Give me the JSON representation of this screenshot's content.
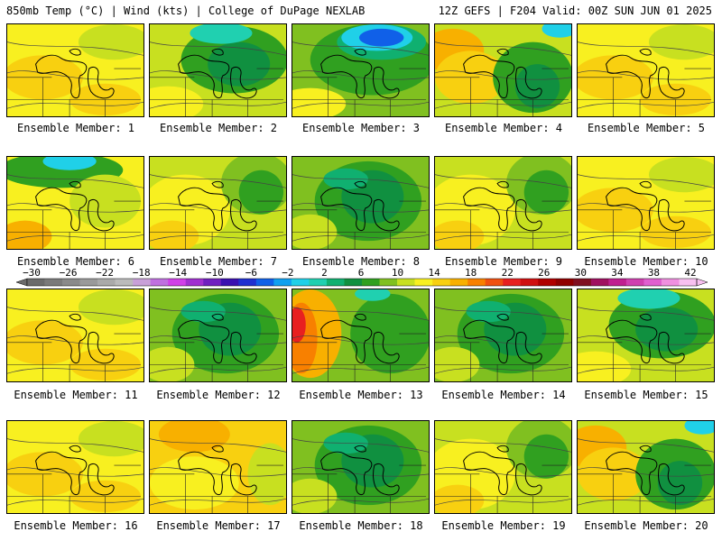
{
  "header": {
    "left": "850mb Temp (°C) | Wind (kts) | College of DuPage NEXLAB",
    "right": "12Z GEFS | F204 Valid: 00Z SUN JUN 01 2025"
  },
  "legend": {
    "ticks": [
      "-30",
      "-26",
      "-22",
      "-18",
      "-14",
      "-10",
      "-6",
      "-2",
      "2",
      "6",
      "10",
      "14",
      "18",
      "22",
      "26",
      "30",
      "34",
      "38",
      "42"
    ],
    "colors": [
      "#6b6b6b",
      "#7a7a7a",
      "#8a8a8a",
      "#9a9a9a",
      "#aaaaaa",
      "#bbbbbb",
      "#c8a0d8",
      "#c070e0",
      "#d040e8",
      "#a030d0",
      "#7020c0",
      "#3a10b0",
      "#2030d0",
      "#1060e8",
      "#10a0f0",
      "#20d0e8",
      "#20d0b0",
      "#10b070",
      "#109040",
      "#30a020",
      "#80c020",
      "#c8e020",
      "#f8f020",
      "#f8d010",
      "#f8b000",
      "#f88000",
      "#f05010",
      "#e82020",
      "#d01010",
      "#b00000",
      "#900000",
      "#801020",
      "#a01060",
      "#c02090",
      "#d040b0",
      "#e060d0",
      "#f090e0",
      "#f8c0f0"
    ]
  },
  "panels": [
    {
      "label": "Ensemble Member: 1",
      "theme": "yellow"
    },
    {
      "label": "Ensemble Member: 2",
      "theme": "green-cyan"
    },
    {
      "label": "Ensemble Member: 3",
      "theme": "blue"
    },
    {
      "label": "Ensemble Member: 4",
      "theme": "green-orange"
    },
    {
      "label": "Ensemble Member: 5",
      "theme": "yellow"
    },
    {
      "label": "Ensemble Member: 6",
      "theme": "yellow-cyan"
    },
    {
      "label": "Ensemble Member: 7",
      "theme": "yellow-green"
    },
    {
      "label": "Ensemble Member: 8",
      "theme": "green"
    },
    {
      "label": "Ensemble Member: 9",
      "theme": "yellow-green"
    },
    {
      "label": "Ensemble Member: 10",
      "theme": "yellow"
    },
    {
      "label": "Ensemble Member: 11",
      "theme": "yellow"
    },
    {
      "label": "Ensemble Member: 12",
      "theme": "green"
    },
    {
      "label": "Ensemble Member: 13",
      "theme": "hot"
    },
    {
      "label": "Ensemble Member: 14",
      "theme": "green"
    },
    {
      "label": "Ensemble Member: 15",
      "theme": "green-cyan"
    },
    {
      "label": "Ensemble Member: 16",
      "theme": "yellow"
    },
    {
      "label": "Ensemble Member: 17",
      "theme": "yellow-orange"
    },
    {
      "label": "Ensemble Member: 18",
      "theme": "green"
    },
    {
      "label": "Ensemble Member: 19",
      "theme": "yellow-green"
    },
    {
      "label": "Ensemble Member: 20",
      "theme": "green-orange"
    }
  ]
}
